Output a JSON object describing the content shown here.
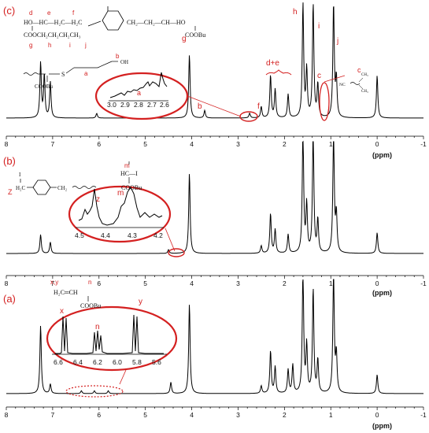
{
  "chart_data": [
    {
      "type": "line",
      "panel_label": "(c)",
      "xlabel": "(ppm)",
      "xlim": [
        8,
        -1
      ],
      "x_reversed": true,
      "ticks": [
        "8",
        "7",
        "6",
        "5",
        "4",
        "3",
        "2",
        "1",
        "0",
        "-1"
      ],
      "peaks": [
        {
          "x": 7.26,
          "h": 0.58
        },
        {
          "x": 7.18,
          "h": 0.45
        },
        {
          "x": 7.05,
          "h": 0.38
        },
        {
          "x": 6.05,
          "h": 0.05
        },
        {
          "x": 4.05,
          "h": 0.67
        },
        {
          "x": 3.72,
          "h": 0.08
        },
        {
          "x": 2.75,
          "h": 0.05
        },
        {
          "x": 2.5,
          "h": 0.12
        },
        {
          "x": 2.3,
          "h": 0.45
        },
        {
          "x": 2.2,
          "h": 0.3
        },
        {
          "x": 1.92,
          "h": 0.25
        },
        {
          "x": 1.6,
          "h": 1.2
        },
        {
          "x": 1.52,
          "h": 0.5
        },
        {
          "x": 1.38,
          "h": 1.2
        },
        {
          "x": 1.28,
          "h": 0.35
        },
        {
          "x": 0.94,
          "h": 1.2
        },
        {
          "x": 0.88,
          "h": 0.4
        },
        {
          "x": 0.0,
          "h": 0.45
        }
      ],
      "peak_labels": [
        {
          "text": "g",
          "x": 4.08
        },
        {
          "text": "h",
          "x": 1.72
        },
        {
          "text": "i",
          "x": 1.28
        },
        {
          "text": "j",
          "x": 0.86
        },
        {
          "text": "d+e",
          "x": 2.28
        },
        {
          "text": "f",
          "x": 2.55
        },
        {
          "text": "b",
          "x": 3.68
        },
        {
          "text": "c",
          "x": 1.3
        }
      ],
      "inset": {
        "ticks": [
          "3.0",
          "2.9",
          "2.8",
          "2.7",
          "2.6"
        ],
        "peak_label": "a"
      },
      "structure": {
        "line1": "HO—HC—H₂C—H₂C",
        "line1_right": "CH₂—CH₂—CH—HO",
        "line2": "COOCH₂CH₂CH₂CH₃",
        "line2_right": "COOBu",
        "sub_labels": [
          "d",
          "e",
          "f",
          "g",
          "h",
          "i",
          "j",
          "a",
          "b",
          "c"
        ],
        "thiol_arm_1": "COOBu",
        "thiol_arm_2": "S",
        "thiol_arm_3": "OH",
        "end_group": "NC",
        "end_ch3_1": "CH₃",
        "end_ch3_2": "CH₃"
      }
    },
    {
      "type": "line",
      "panel_label": "(b)",
      "xlabel": "(ppm)",
      "xlim": [
        8,
        -1
      ],
      "x_reversed": true,
      "ticks": [
        "8",
        "7",
        "6",
        "5",
        "4",
        "3",
        "2",
        "1",
        "0",
        "-1"
      ],
      "peaks": [
        {
          "x": 7.26,
          "h": 0.2
        },
        {
          "x": 7.05,
          "h": 0.12
        },
        {
          "x": 4.5,
          "h": 0.04
        },
        {
          "x": 4.05,
          "h": 0.85
        },
        {
          "x": 2.5,
          "h": 0.08
        },
        {
          "x": 2.3,
          "h": 0.42
        },
        {
          "x": 2.2,
          "h": 0.25
        },
        {
          "x": 1.92,
          "h": 0.2
        },
        {
          "x": 1.6,
          "h": 1.3
        },
        {
          "x": 1.52,
          "h": 0.5
        },
        {
          "x": 1.38,
          "h": 1.3
        },
        {
          "x": 1.28,
          "h": 0.35
        },
        {
          "x": 0.94,
          "h": 1.3
        },
        {
          "x": 0.88,
          "h": 0.4
        },
        {
          "x": 0.0,
          "h": 0.22
        }
      ],
      "inset": {
        "ticks": [
          "4.5",
          "4.4",
          "4.3",
          "4.2"
        ],
        "peak_labels": [
          "z",
          "m"
        ]
      },
      "structure": {
        "m": "m",
        "hc_i": "HC—I",
        "coobu": "COOBu",
        "i": "I",
        "h2c": "H₂C",
        "z": "Z",
        "ch2": "CH₂"
      }
    },
    {
      "type": "line",
      "panel_label": "(a)",
      "xlabel": "(ppm)",
      "xlim": [
        8,
        -1
      ],
      "x_reversed": true,
      "ticks": [
        "8",
        "7",
        "6",
        "5",
        "4",
        "3",
        "2",
        "1",
        "0",
        "-1"
      ],
      "peaks": [
        {
          "x": 7.26,
          "h": 0.72
        },
        {
          "x": 7.05,
          "h": 0.1
        },
        {
          "x": 6.38,
          "h": 0.03
        },
        {
          "x": 6.1,
          "h": 0.03
        },
        {
          "x": 5.8,
          "h": 0.03
        },
        {
          "x": 4.45,
          "h": 0.12
        },
        {
          "x": 4.05,
          "h": 0.95
        },
        {
          "x": 2.5,
          "h": 0.08
        },
        {
          "x": 2.3,
          "h": 0.45
        },
        {
          "x": 2.2,
          "h": 0.28
        },
        {
          "x": 1.92,
          "h": 0.25
        },
        {
          "x": 1.82,
          "h": 0.3
        },
        {
          "x": 1.6,
          "h": 1.3
        },
        {
          "x": 1.52,
          "h": 0.5
        },
        {
          "x": 1.38,
          "h": 1.1
        },
        {
          "x": 1.28,
          "h": 0.35
        },
        {
          "x": 0.94,
          "h": 1.3
        },
        {
          "x": 0.88,
          "h": 0.4
        },
        {
          "x": 0.0,
          "h": 0.2
        }
      ],
      "inset": {
        "ticks": [
          "6.6",
          "6.4",
          "6.2",
          "6.0",
          "5.8",
          "5.6"
        ],
        "peak_labels": [
          "x",
          "n",
          "y"
        ]
      },
      "structure": {
        "xy": "x,y",
        "n": "n",
        "h2c_ch": "H₂C═CH",
        "coobu": "COOBu"
      }
    }
  ],
  "colors": {
    "accent": "#d42020",
    "trace": "#000000"
  }
}
